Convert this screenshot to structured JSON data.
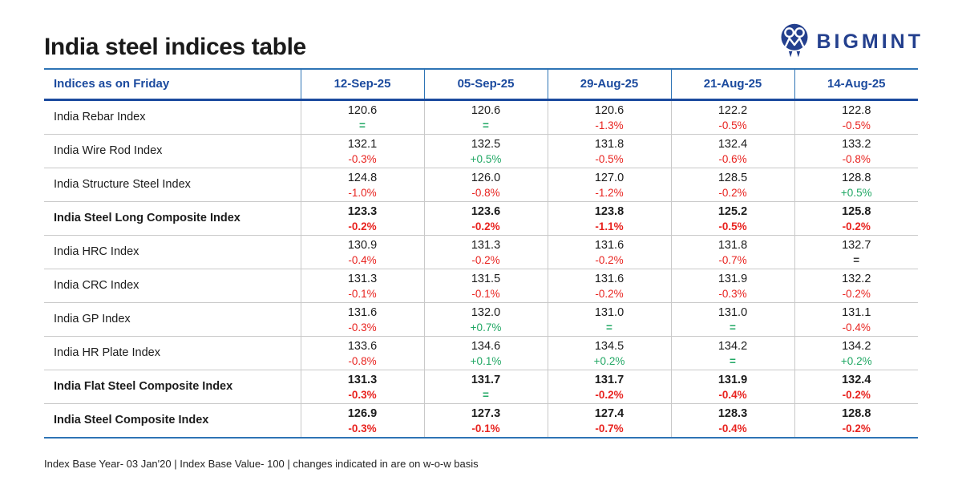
{
  "page": {
    "title": "India steel indices table"
  },
  "logo": {
    "text": "BIGMINT",
    "icon": "bigmint-people-circle-icon",
    "color": "#24408e"
  },
  "colors": {
    "header_blue": "#1b4a9e",
    "line_blue": "#2e74b5",
    "negative_red": "#e8231f",
    "positive_green": "#22a865",
    "divider_gray": "#c9c9c9"
  },
  "chart_data": {
    "type": "table",
    "title": "India steel indices table",
    "header_label": "Indices as on Friday",
    "columns": [
      "12-Sep-25",
      "05-Sep-25",
      "29-Aug-25",
      "21-Aug-25",
      "14-Aug-25"
    ],
    "rows": [
      {
        "name": "India Rebar Index",
        "bold": false,
        "cells": [
          {
            "value": "120.6",
            "change": "=",
            "direction": "flat"
          },
          {
            "value": "120.6",
            "change": "=",
            "direction": "flat"
          },
          {
            "value": "120.6",
            "change": "-1.3%",
            "direction": "down"
          },
          {
            "value": "122.2",
            "change": "-0.5%",
            "direction": "down"
          },
          {
            "value": "122.8",
            "change": "-0.5%",
            "direction": "down"
          }
        ]
      },
      {
        "name": "India Wire Rod Index",
        "bold": false,
        "cells": [
          {
            "value": "132.1",
            "change": "-0.3%",
            "direction": "down"
          },
          {
            "value": "132.5",
            "change": "+0.5%",
            "direction": "up"
          },
          {
            "value": "131.8",
            "change": "-0.5%",
            "direction": "down"
          },
          {
            "value": "132.4",
            "change": "-0.6%",
            "direction": "down"
          },
          {
            "value": "133.2",
            "change": "-0.8%",
            "direction": "down"
          }
        ]
      },
      {
        "name": "India Structure Steel Index",
        "bold": false,
        "cells": [
          {
            "value": "124.8",
            "change": "-1.0%",
            "direction": "down"
          },
          {
            "value": "126.0",
            "change": "-0.8%",
            "direction": "down"
          },
          {
            "value": "127.0",
            "change": "-1.2%",
            "direction": "down"
          },
          {
            "value": "128.5",
            "change": "-0.2%",
            "direction": "down"
          },
          {
            "value": "128.8",
            "change": "+0.5%",
            "direction": "up"
          }
        ]
      },
      {
        "name": "India Steel Long Composite Index",
        "bold": true,
        "cells": [
          {
            "value": "123.3",
            "change": "-0.2%",
            "direction": "down"
          },
          {
            "value": "123.6",
            "change": "-0.2%",
            "direction": "down"
          },
          {
            "value": "123.8",
            "change": "-1.1%",
            "direction": "down"
          },
          {
            "value": "125.2",
            "change": "-0.5%",
            "direction": "down"
          },
          {
            "value": "125.8",
            "change": "-0.2%",
            "direction": "down"
          }
        ]
      },
      {
        "name": "India HRC Index",
        "bold": false,
        "cells": [
          {
            "value": "130.9",
            "change": "-0.4%",
            "direction": "down"
          },
          {
            "value": "131.3",
            "change": "-0.2%",
            "direction": "down"
          },
          {
            "value": "131.6",
            "change": "-0.2%",
            "direction": "down"
          },
          {
            "value": "131.8",
            "change": "-0.7%",
            "direction": "down"
          },
          {
            "value": "132.7",
            "change": "=",
            "direction": "flat_dark"
          }
        ]
      },
      {
        "name": "India CRC Index",
        "bold": false,
        "cells": [
          {
            "value": "131.3",
            "change": "-0.1%",
            "direction": "down"
          },
          {
            "value": "131.5",
            "change": "-0.1%",
            "direction": "down"
          },
          {
            "value": "131.6",
            "change": "-0.2%",
            "direction": "down"
          },
          {
            "value": "131.9",
            "change": "-0.3%",
            "direction": "down"
          },
          {
            "value": "132.2",
            "change": "-0.2%",
            "direction": "down"
          }
        ]
      },
      {
        "name": "India GP Index",
        "bold": false,
        "cells": [
          {
            "value": "131.6",
            "change": "-0.3%",
            "direction": "down"
          },
          {
            "value": "132.0",
            "change": "+0.7%",
            "direction": "up"
          },
          {
            "value": "131.0",
            "change": "=",
            "direction": "flat"
          },
          {
            "value": "131.0",
            "change": "=",
            "direction": "flat"
          },
          {
            "value": "131.1",
            "change": "-0.4%",
            "direction": "down"
          }
        ]
      },
      {
        "name": "India HR Plate Index",
        "bold": false,
        "cells": [
          {
            "value": "133.6",
            "change": "-0.8%",
            "direction": "down"
          },
          {
            "value": "134.6",
            "change": "+0.1%",
            "direction": "up"
          },
          {
            "value": "134.5",
            "change": "+0.2%",
            "direction": "up"
          },
          {
            "value": "134.2",
            "change": "=",
            "direction": "flat"
          },
          {
            "value": "134.2",
            "change": "+0.2%",
            "direction": "up"
          }
        ]
      },
      {
        "name": "India Flat Steel Composite Index",
        "bold": true,
        "cells": [
          {
            "value": "131.3",
            "change": "-0.3%",
            "direction": "down"
          },
          {
            "value": "131.7",
            "change": "=",
            "direction": "flat"
          },
          {
            "value": "131.7",
            "change": "-0.2%",
            "direction": "down"
          },
          {
            "value": "131.9",
            "change": "-0.4%",
            "direction": "down"
          },
          {
            "value": "132.4",
            "change": "-0.2%",
            "direction": "down"
          }
        ]
      },
      {
        "name": "India Steel Composite Index",
        "bold": true,
        "cells": [
          {
            "value": "126.9",
            "change": "-0.3%",
            "direction": "down"
          },
          {
            "value": "127.3",
            "change": "-0.1%",
            "direction": "down"
          },
          {
            "value": "127.4",
            "change": "-0.7%",
            "direction": "down"
          },
          {
            "value": "128.3",
            "change": "-0.4%",
            "direction": "down"
          },
          {
            "value": "128.8",
            "change": "-0.2%",
            "direction": "down"
          }
        ]
      }
    ],
    "footnote": "Index Base Year- 03 Jan'20 | Index Base Value- 100 | changes indicated in are on w-o-w basis"
  }
}
